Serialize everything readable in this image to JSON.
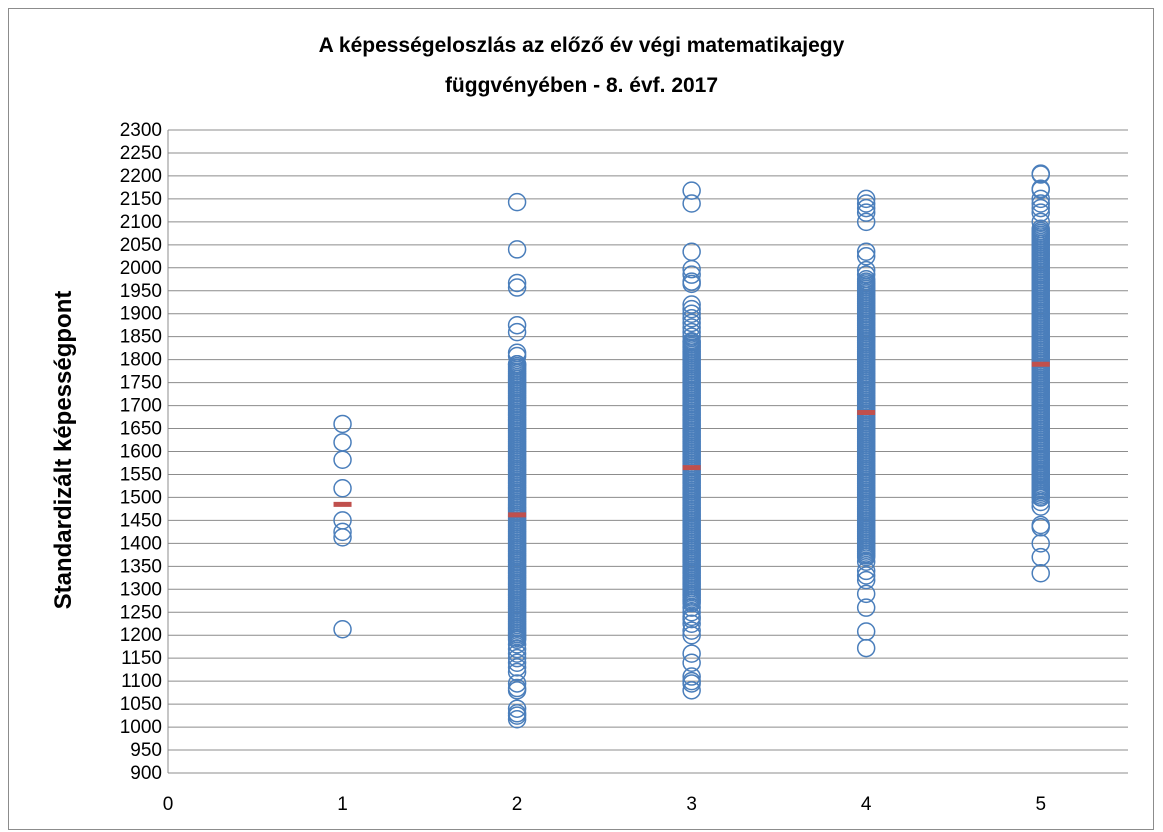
{
  "chart_data": {
    "type": "scatter",
    "title": "A képességeloszlás az előző év végi matematikajegy",
    "subtitle": "függvényében - 8. évf. 2017",
    "xlabel": "",
    "ylabel": "Standardizált képességpont",
    "xlim": [
      0,
      5.5
    ],
    "ylim": [
      900,
      2300
    ],
    "x_ticks": [
      "0",
      "1",
      "2",
      "3",
      "4",
      "5"
    ],
    "y_ticks": [
      "900",
      "950",
      "1000",
      "1050",
      "1100",
      "1150",
      "1200",
      "1250",
      "1300",
      "1350",
      "1400",
      "1450",
      "1500",
      "1550",
      "1600",
      "1650",
      "1700",
      "1750",
      "1800",
      "1850",
      "1900",
      "1950",
      "2000",
      "2050",
      "2100",
      "2150",
      "2200",
      "2250",
      "2300"
    ],
    "grid": "horizontal",
    "legend": "none",
    "colors": {
      "points": "#4a7ebb",
      "mean": "#c0504d",
      "grid": "#8c8c8c"
    },
    "series": [
      {
        "marker": "open-circle",
        "groups": [
          {
            "x": 1,
            "points": [
              1660,
              1620,
              1582,
              1520,
              1450,
              1425,
              1413,
              1213
            ],
            "dense_range": []
          },
          {
            "x": 2,
            "points": [
              2143,
              2040,
              1967,
              1957,
              1875,
              1860,
              1815,
              1808,
              1790,
              1180,
              1170,
              1160,
              1150,
              1140,
              1130,
              1120,
              1095,
              1085,
              1080,
              1040,
              1030,
              1025,
              1017
            ],
            "dense_range": [
              1190,
              1790
            ]
          },
          {
            "x": 3,
            "points": [
              2168,
              2140,
              2035,
              1997,
              1985,
              1970,
              1965,
              1920,
              1910,
              1900,
              1890,
              1880,
              1870,
              1860,
              1850,
              1840,
              1260,
              1250,
              1240,
              1235,
              1225,
              1210,
              1200,
              1160,
              1140,
              1110,
              1100,
              1095,
              1080
            ],
            "dense_range": [
              1270,
              1840
            ]
          },
          {
            "x": 4,
            "points": [
              2150,
              2140,
              2130,
              2120,
              2100,
              2035,
              2025,
              1995,
              1985,
              1975,
              1360,
              1340,
              1330,
              1320,
              1290,
              1260,
              1208,
              1172
            ],
            "dense_range": [
              1370,
              1970
            ]
          },
          {
            "x": 5,
            "points": [
              2205,
              2203,
              2172,
              2170,
              2150,
              2140,
              2130,
              2120,
              2100,
              2085,
              1550,
              1520,
              1500,
              1490,
              1480,
              1440,
              1435,
              1400,
              1370,
              1335
            ],
            "dense_range": [
              1500,
              2080
            ]
          }
        ]
      }
    ],
    "means": [
      {
        "x": 1,
        "y": 1485
      },
      {
        "x": 2,
        "y": 1462
      },
      {
        "x": 3,
        "y": 1565
      },
      {
        "x": 4,
        "y": 1685
      },
      {
        "x": 5,
        "y": 1790
      }
    ]
  }
}
